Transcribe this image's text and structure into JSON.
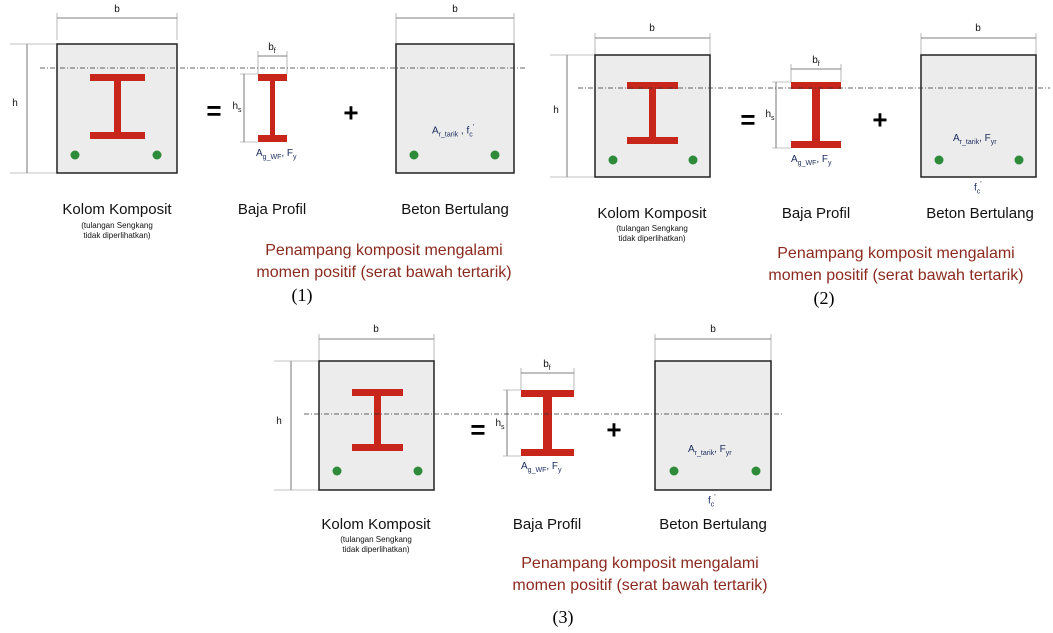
{
  "labels": {
    "b": "b",
    "h": "h",
    "bf_main": "b",
    "bf_sub": "f",
    "hs_main": "h",
    "hs_sub": "s",
    "equals": "=",
    "plus": "+",
    "composite": "Kolom Komposit",
    "composite_note_1": "(tulangan Sengkang",
    "composite_note_2": "tidak diperlihatkan)",
    "steel": "Baja Profil",
    "concrete": "Beton Bertulang",
    "steel_area_main": "A",
    "steel_area_sub": "g_WF",
    "steel_fy_main": ", F",
    "steel_fy_sub": "y",
    "fc_main": "f",
    "fc_sub": "c",
    "fc_sup": "'",
    "rebar_area_main": "A",
    "rebar_area_sub": "r_tarik",
    "rebar_fy_main": ", F",
    "rebar_fy_sub": "yr",
    "caption_line1": "Penampang komposit mengalami",
    "caption_line2": "momen positif (serat bawah tertarik)"
  },
  "panels": [
    {
      "number": "(1)",
      "variant": "fc_inline"
    },
    {
      "number": "(2)",
      "variant": "fyr_fc_below"
    },
    {
      "number": "(3)",
      "variant": "fyr_fc_below"
    }
  ],
  "colors": {
    "steel": "#c8261a",
    "rebar": "#2e8b3a",
    "caption": "#8b2a1f",
    "concrete": "#ececec"
  }
}
